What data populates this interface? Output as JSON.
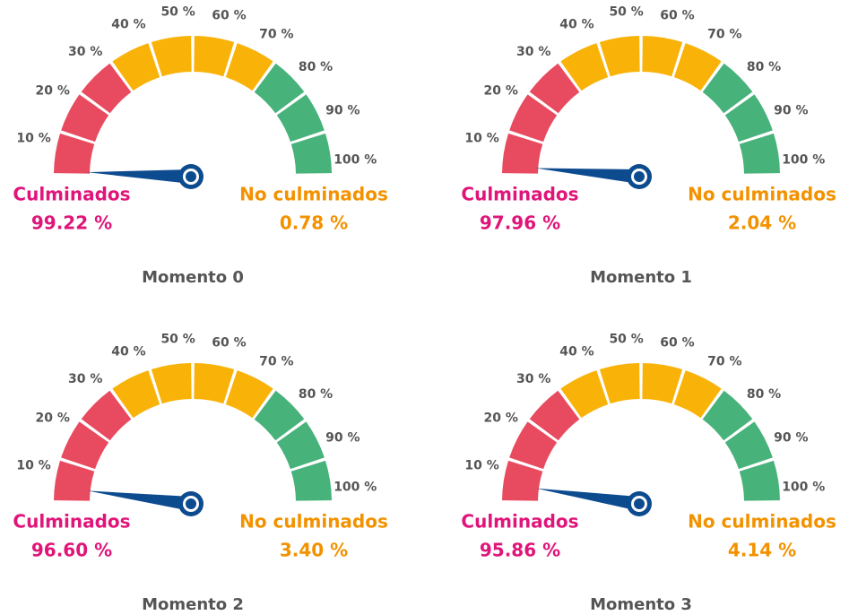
{
  "chart_data": [
    {
      "type": "gauge",
      "title": "Momento 0",
      "ylim": [
        0,
        100
      ],
      "yticks": [
        {
          "value": 10,
          "label": "10 %"
        },
        {
          "value": 20,
          "label": "20 %"
        },
        {
          "value": 30,
          "label": "30 %"
        },
        {
          "value": 40,
          "label": "40 %"
        },
        {
          "value": 50,
          "label": "50 %"
        },
        {
          "value": 60,
          "label": "60 %"
        },
        {
          "value": 70,
          "label": "70 %"
        },
        {
          "value": 80,
          "label": "80 %"
        },
        {
          "value": 90,
          "label": "90 %"
        },
        {
          "value": 100,
          "label": "100 %"
        }
      ],
      "bands": [
        {
          "from": 0,
          "to": 30,
          "color": "#e84a5f"
        },
        {
          "from": 30,
          "to": 70,
          "color": "#f9b208"
        },
        {
          "from": 70,
          "to": 100,
          "color": "#47b27a"
        }
      ],
      "needle_color": "#0d4b8f",
      "series": [
        {
          "name": "Culminados",
          "color": "#e0157a",
          "values": [
            99.22
          ],
          "value_labels": [
            "99.22 %"
          ]
        },
        {
          "name": "No culminados",
          "color": "#f39200",
          "values": [
            0.78
          ],
          "value_labels": [
            "0.78 %"
          ]
        }
      ]
    },
    {
      "type": "gauge",
      "title": "Momento 1",
      "ylim": [
        0,
        100
      ],
      "yticks": [
        {
          "value": 10,
          "label": "10 %"
        },
        {
          "value": 20,
          "label": "20 %"
        },
        {
          "value": 30,
          "label": "30 %"
        },
        {
          "value": 40,
          "label": "40 %"
        },
        {
          "value": 50,
          "label": "50 %"
        },
        {
          "value": 60,
          "label": "60 %"
        },
        {
          "value": 70,
          "label": "70 %"
        },
        {
          "value": 80,
          "label": "80 %"
        },
        {
          "value": 90,
          "label": "90 %"
        },
        {
          "value": 100,
          "label": "100 %"
        }
      ],
      "bands": [
        {
          "from": 0,
          "to": 30,
          "color": "#e84a5f"
        },
        {
          "from": 30,
          "to": 70,
          "color": "#f9b208"
        },
        {
          "from": 70,
          "to": 100,
          "color": "#47b27a"
        }
      ],
      "needle_color": "#0d4b8f",
      "series": [
        {
          "name": "Culminados",
          "color": "#e0157a",
          "values": [
            97.96
          ],
          "value_labels": [
            "97.96 %"
          ]
        },
        {
          "name": "No culminados",
          "color": "#f39200",
          "values": [
            2.04
          ],
          "value_labels": [
            "2.04 %"
          ]
        }
      ]
    },
    {
      "type": "gauge",
      "title": "Momento 2",
      "ylim": [
        0,
        100
      ],
      "yticks": [
        {
          "value": 10,
          "label": "10 %"
        },
        {
          "value": 20,
          "label": "20 %"
        },
        {
          "value": 30,
          "label": "30 %"
        },
        {
          "value": 40,
          "label": "40 %"
        },
        {
          "value": 50,
          "label": "50 %"
        },
        {
          "value": 60,
          "label": "60 %"
        },
        {
          "value": 70,
          "label": "70 %"
        },
        {
          "value": 80,
          "label": "80 %"
        },
        {
          "value": 90,
          "label": "90 %"
        },
        {
          "value": 100,
          "label": "100 %"
        }
      ],
      "bands": [
        {
          "from": 0,
          "to": 30,
          "color": "#e84a5f"
        },
        {
          "from": 30,
          "to": 70,
          "color": "#f9b208"
        },
        {
          "from": 70,
          "to": 100,
          "color": "#47b27a"
        }
      ],
      "needle_color": "#0d4b8f",
      "series": [
        {
          "name": "Culminados",
          "color": "#e0157a",
          "values": [
            96.6
          ],
          "value_labels": [
            "96.60 %"
          ]
        },
        {
          "name": "No culminados",
          "color": "#f39200",
          "values": [
            3.4
          ],
          "value_labels": [
            "3.40 %"
          ]
        }
      ]
    },
    {
      "type": "gauge",
      "title": "Momento 3",
      "ylim": [
        0,
        100
      ],
      "yticks": [
        {
          "value": 10,
          "label": "10 %"
        },
        {
          "value": 20,
          "label": "20 %"
        },
        {
          "value": 30,
          "label": "30 %"
        },
        {
          "value": 40,
          "label": "40 %"
        },
        {
          "value": 50,
          "label": "50 %"
        },
        {
          "value": 60,
          "label": "60 %"
        },
        {
          "value": 70,
          "label": "70 %"
        },
        {
          "value": 80,
          "label": "80 %"
        },
        {
          "value": 90,
          "label": "90 %"
        },
        {
          "value": 100,
          "label": "100 %"
        }
      ],
      "bands": [
        {
          "from": 0,
          "to": 30,
          "color": "#e84a5f"
        },
        {
          "from": 30,
          "to": 70,
          "color": "#f9b208"
        },
        {
          "from": 70,
          "to": 100,
          "color": "#47b27a"
        }
      ],
      "needle_color": "#0d4b8f",
      "series": [
        {
          "name": "Culminados",
          "color": "#e0157a",
          "values": [
            95.86
          ],
          "value_labels": [
            "95.86 %"
          ]
        },
        {
          "name": "No culminados",
          "color": "#f39200",
          "values": [
            4.14
          ],
          "value_labels": [
            "4.14 %"
          ]
        }
      ]
    }
  ]
}
